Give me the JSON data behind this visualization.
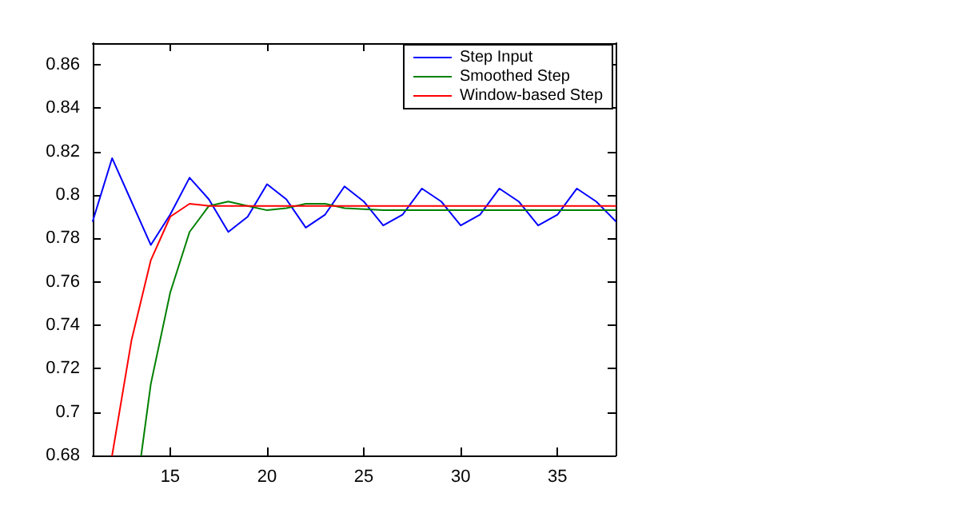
{
  "chart_data": {
    "type": "line",
    "xlim": [
      11,
      38
    ],
    "xticks": [
      15,
      20,
      25,
      30,
      35
    ],
    "ylim": [
      0.68,
      0.87
    ],
    "yticks": [
      0.68,
      0.7,
      0.72,
      0.74,
      0.76,
      0.78,
      0.8,
      0.82,
      0.84,
      0.86
    ],
    "grid": false,
    "legend": "top right",
    "marker": "none",
    "line_style": "solid",
    "series": [
      {
        "name": "Step Input",
        "color": "#0000ff",
        "x": [
          11,
          12,
          13,
          14,
          15,
          16,
          17,
          18,
          19,
          20,
          21,
          22,
          23,
          24,
          25,
          26,
          27,
          28,
          29,
          30,
          31,
          32,
          33,
          34,
          35,
          36,
          37,
          38
        ],
        "values": [
          0.788,
          0.817,
          0.797,
          0.777,
          0.791,
          0.808,
          0.798,
          0.783,
          0.79,
          0.805,
          0.798,
          0.785,
          0.791,
          0.804,
          0.797,
          0.786,
          0.791,
          0.803,
          0.797,
          0.786,
          0.791,
          0.803,
          0.797,
          0.786,
          0.791,
          0.803,
          0.797,
          0.788
        ]
      },
      {
        "name": "Smoothed Step",
        "color": "#008000",
        "x": [
          13.5,
          14,
          15,
          16,
          17,
          18,
          19,
          20,
          21,
          22,
          23,
          24,
          26,
          28,
          30,
          32,
          34,
          36,
          38
        ],
        "values": [
          0.68,
          0.713,
          0.755,
          0.783,
          0.795,
          0.797,
          0.795,
          0.793,
          0.794,
          0.796,
          0.796,
          0.794,
          0.793,
          0.793,
          0.793,
          0.793,
          0.793,
          0.793,
          0.793
        ]
      },
      {
        "name": "Window-based Step",
        "color": "#ff0000",
        "x": [
          12,
          13,
          14,
          15,
          16,
          17,
          18,
          20,
          22,
          24,
          26,
          28,
          30,
          32,
          34,
          36,
          38
        ],
        "values": [
          0.68,
          0.733,
          0.77,
          0.79,
          0.796,
          0.795,
          0.795,
          0.795,
          0.795,
          0.795,
          0.795,
          0.795,
          0.795,
          0.795,
          0.795,
          0.795,
          0.795
        ]
      }
    ]
  }
}
